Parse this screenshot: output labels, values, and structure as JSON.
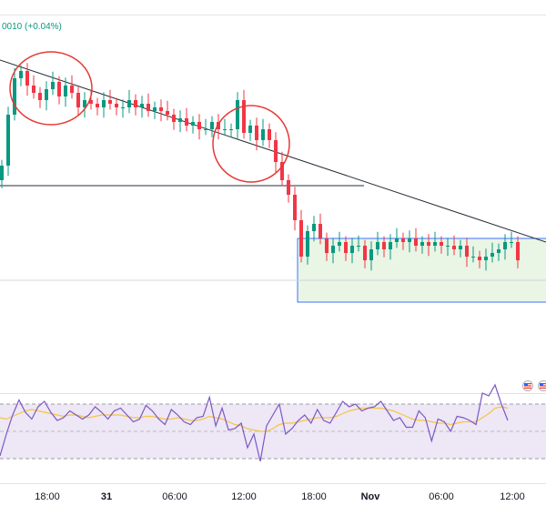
{
  "header": {
    "change_text": "0010 (+0.04%)"
  },
  "colors": {
    "up": "#089981",
    "down": "#f23645",
    "trendline": "#2a2e39",
    "circle": "#e53935",
    "box_fill": "#e7f5e3",
    "box_stroke": "#2962ff",
    "rsi_line": "#7e57c2",
    "rsi_ma": "#f5c542",
    "rsi_band": "#ede7f6"
  },
  "icons": [
    "us-flag-event-icon",
    "us-flag-event-icon"
  ],
  "chart_data": [
    {
      "type": "candlestick",
      "title": "",
      "x_ticks": [
        "18:00",
        "31",
        "06:00",
        "12:00",
        "18:00",
        "Nov",
        "06:00",
        "12:00"
      ],
      "x_ticks_bold": [
        "31",
        "Nov"
      ],
      "series": [
        {
          "values": [
            62,
            76,
            86,
            88,
            84,
            82,
            80,
            83,
            85,
            81,
            84,
            82,
            78,
            80,
            79,
            78,
            80,
            79,
            78,
            78,
            80,
            78,
            79,
            77,
            78,
            77,
            76,
            74,
            75,
            73,
            74,
            72,
            72,
            74,
            72,
            72,
            72,
            80,
            71,
            73,
            69,
            72,
            69,
            63,
            58,
            54,
            47,
            37,
            44,
            46,
            42,
            38,
            40,
            41,
            38,
            40,
            40,
            36,
            39,
            41,
            39,
            41,
            42,
            41,
            42,
            40,
            41,
            40,
            41,
            40,
            40,
            39,
            40,
            37,
            37,
            36,
            37,
            38,
            39,
            41,
            41,
            36
          ]
        }
      ],
      "annotations": [
        "descending trendline",
        "two circled lower-high zones",
        "horizontal support line",
        "green shaded consolidation range"
      ]
    },
    {
      "type": "line",
      "title": "",
      "ylim": [
        0,
        100
      ],
      "series": [
        {
          "values": [
            22,
            38,
            52,
            63,
            54,
            49,
            58,
            62,
            54,
            48,
            50,
            55,
            52,
            49,
            52,
            58,
            54,
            49,
            55,
            57,
            52,
            47,
            49,
            59,
            55,
            49,
            45,
            56,
            52,
            47,
            45,
            50,
            51,
            65,
            44,
            57,
            41,
            42,
            46,
            28,
            38,
            18,
            44,
            52,
            60,
            38,
            42,
            48,
            52,
            46,
            56,
            48,
            46,
            54,
            62,
            58,
            60,
            55,
            57,
            58,
            62,
            55,
            48,
            50,
            43,
            43,
            55,
            50,
            33,
            49,
            47,
            40,
            51,
            50,
            48,
            45,
            68,
            66,
            74,
            60,
            48
          ]
        },
        {
          "values": [
            50,
            49,
            51,
            53,
            55,
            56,
            55,
            54,
            53,
            52,
            51,
            52,
            52,
            51,
            50,
            51,
            52,
            52,
            52,
            52,
            51,
            50,
            50,
            51,
            51,
            50,
            49,
            49,
            50,
            49,
            48,
            48,
            49,
            51,
            50,
            49,
            47,
            45,
            44,
            42,
            41,
            40,
            40,
            42,
            45,
            46,
            46,
            47,
            48,
            49,
            50,
            50,
            50,
            51,
            53,
            55,
            56,
            57,
            57,
            57,
            57,
            56,
            55,
            53,
            51,
            49,
            48,
            48,
            47,
            46,
            46,
            45,
            46,
            47,
            47,
            47,
            50,
            53,
            57,
            58,
            57
          ]
        }
      ]
    }
  ]
}
